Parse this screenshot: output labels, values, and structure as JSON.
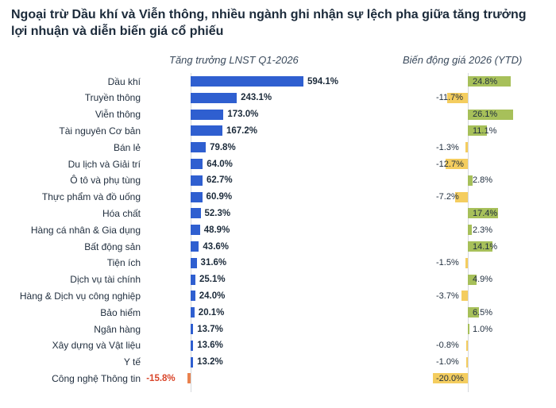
{
  "title_lines": [
    "Ngoại trừ Dầu khí và Viễn thông, nhiều ngành ghi nhận sự lệch pha giữa tăng trưởng",
    "lợi nhuận và diễn biến giá cổ phiếu"
  ],
  "chart_data": {
    "type": "bar",
    "orientation": "horizontal",
    "categories": [
      "Dầu khí",
      "Truyền thông",
      "Viễn thông",
      "Tài nguyên Cơ bản",
      "Bán lẻ",
      "Du lịch và Giải trí",
      "Ô tô và phụ tùng",
      "Thực phẩm và đồ uống",
      "Hóa chất",
      "Hàng cá nhân & Gia dụng",
      "Bất động sản",
      "Tiện ích",
      "Dịch vụ tài chính",
      "Hàng & Dịch vụ công nghiệp",
      "Bảo hiểm",
      "Ngân hàng",
      "Xây dựng và Vật liệu",
      "Y tế",
      "Công nghệ Thông tin"
    ],
    "series": [
      {
        "name": "Tăng trưởng LNST Q1-2026",
        "values": [
          594.1,
          243.1,
          173.0,
          167.2,
          79.8,
          64.0,
          62.7,
          60.9,
          52.3,
          48.9,
          43.6,
          31.6,
          25.1,
          24.0,
          20.1,
          13.7,
          13.6,
          13.2,
          -15.8
        ],
        "labels": [
          "594.1%",
          "243.1%",
          "173.0%",
          "167.2%",
          "79.8%",
          "64.0%",
          "62.7%",
          "60.9%",
          "52.3%",
          "48.9%",
          "43.6%",
          "31.6%",
          "25.1%",
          "24.0%",
          "20.1%",
          "13.7%",
          "13.6%",
          "13.2%",
          "-15.8%"
        ],
        "color": "#2f5fd0",
        "negative_color": "#e9824f"
      },
      {
        "name": "Biến động giá 2026 (YTD)",
        "values": [
          24.8,
          -11.7,
          26.1,
          11.1,
          -1.3,
          -12.7,
          2.8,
          -7.2,
          17.4,
          2.3,
          14.1,
          -1.5,
          4.9,
          -3.7,
          6.5,
          1.0,
          -0.8,
          -1.0,
          -20.0
        ],
        "labels": [
          "24.8%",
          "-11.7%",
          "26.1%",
          "11.1%",
          "-1.3%",
          "-12.7%",
          "2.8%",
          "-7.2%",
          "17.4%",
          "2.3%",
          "14.1%",
          "-1.5%",
          "4.9%",
          "-3.7%",
          "6.5%",
          "1.0%",
          "-0.8%",
          "-1.0%",
          "-20.0%"
        ],
        "color": "#a7c05a",
        "negative_color": "#f4cd5f"
      }
    ]
  }
}
